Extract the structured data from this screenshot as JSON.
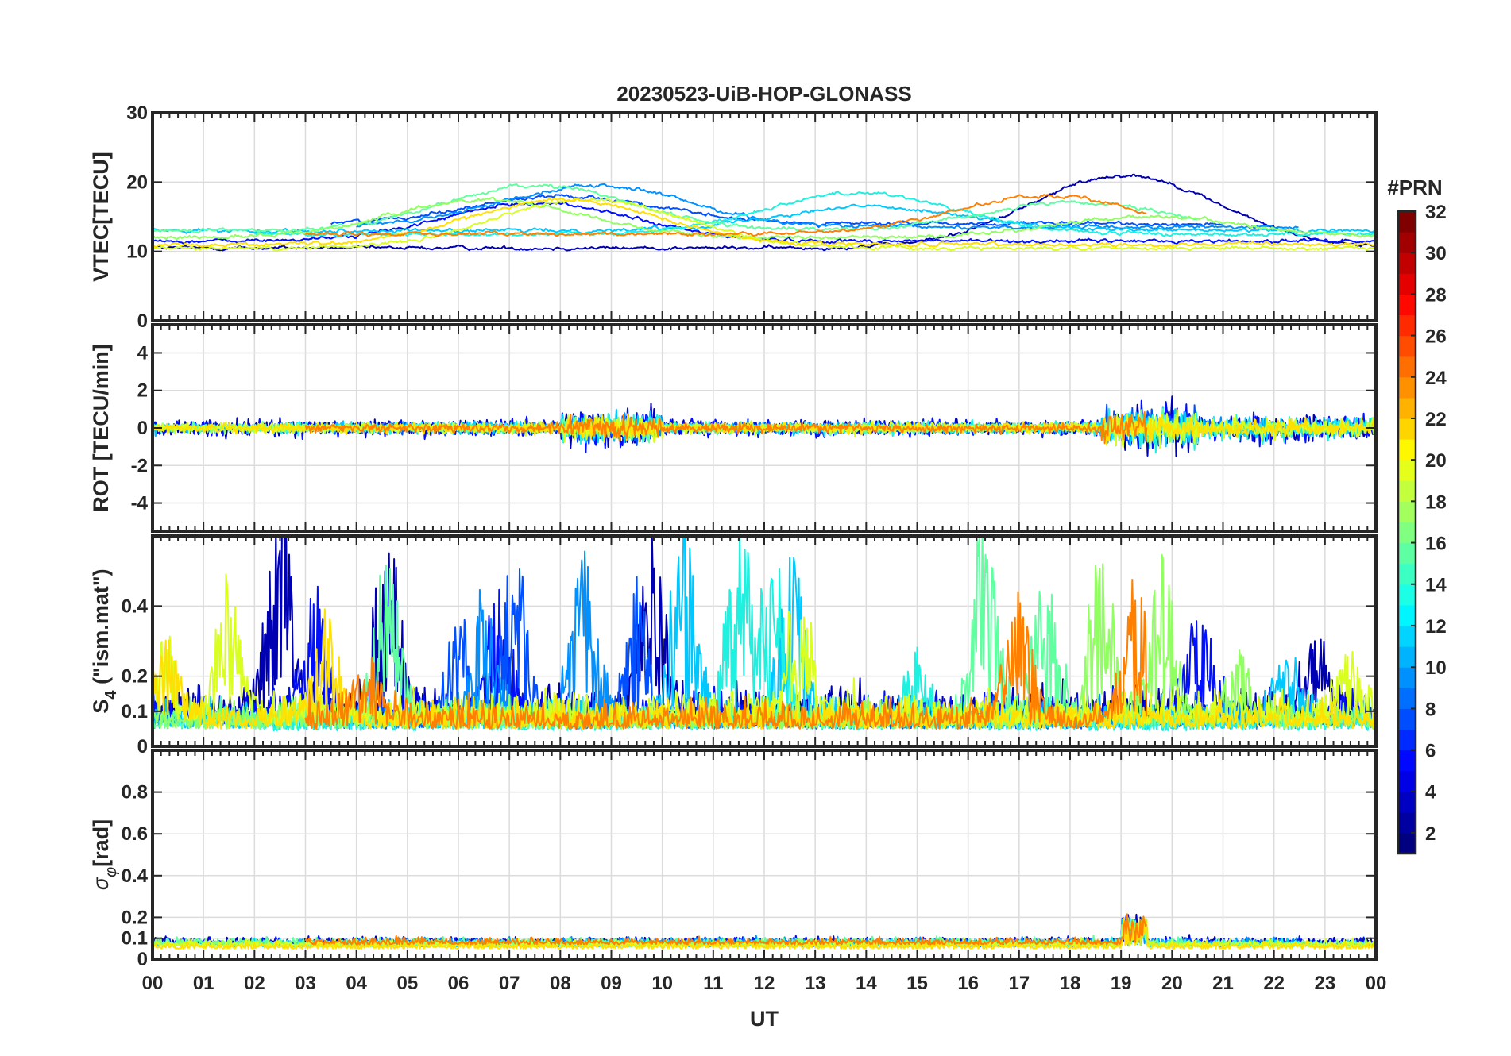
{
  "figure": {
    "title": "20230523-UiB-HOP-GLONASS",
    "xlabel": "UT",
    "colorbar_label": "#PRN"
  },
  "chart_data": [
    {
      "type": "line",
      "panel": "vtec",
      "ylabel": "VTEC[TECU]",
      "ylim": [
        0,
        30
      ],
      "yticks": [
        0,
        10,
        20,
        30
      ],
      "xlim": [
        0,
        24
      ],
      "grid": true
    },
    {
      "type": "line",
      "panel": "rot",
      "ylabel": "ROT [TECU/min]",
      "ylim": [
        -5.5,
        5.5
      ],
      "yticks": [
        -4,
        -2,
        0,
        2,
        4
      ],
      "xlim": [
        0,
        24
      ],
      "grid": true
    },
    {
      "type": "line",
      "panel": "s4",
      "ylabel_main": "S",
      "ylabel_sub": "4",
      "ylabel_rest": " (\"ism.mat\")",
      "ylim": [
        0,
        0.6
      ],
      "yticks": [
        0,
        0.1,
        0.2,
        0.4
      ],
      "xlim": [
        0,
        24
      ],
      "grid": true
    },
    {
      "type": "line",
      "panel": "sigma_phi",
      "ylabel_main": "σ",
      "ylabel_sub": "φ",
      "ylabel_rest": "[rad]",
      "ylim": [
        0,
        1
      ],
      "yticks": [
        0,
        0.1,
        0.2,
        0.4,
        0.6,
        0.8
      ],
      "xlim": [
        0,
        24
      ],
      "grid": true
    }
  ],
  "x_tick_labels": [
    "00",
    "01",
    "02",
    "03",
    "04",
    "05",
    "06",
    "07",
    "08",
    "09",
    "10",
    "11",
    "12",
    "13",
    "14",
    "15",
    "16",
    "17",
    "18",
    "19",
    "20",
    "21",
    "22",
    "23",
    "00"
  ],
  "colorbar": {
    "range": [
      1,
      32
    ],
    "tick_values": [
      2,
      4,
      6,
      8,
      10,
      12,
      14,
      16,
      18,
      20,
      22,
      24,
      26,
      28,
      30,
      32
    ],
    "colormap": "jet"
  },
  "prn_series": [
    {
      "prn": 2,
      "color": "#0000b3",
      "t0": 0.0,
      "t1": 24.0,
      "vtec_base": 10.5,
      "vtec_events": [
        [
          19.0,
          10.5
        ]
      ],
      "rot_amp": 0.9,
      "s4_base": 0.13,
      "s4_events": [
        [
          2.5,
          0.6
        ],
        [
          4.6,
          0.55
        ],
        [
          9.8,
          0.5
        ],
        [
          22.8,
          0.25
        ]
      ],
      "sig_base": 0.07
    },
    {
      "prn": 4,
      "color": "#0010ff",
      "t0": 0.0,
      "t1": 24.0,
      "vtec_base": 11.5,
      "vtec_events": [
        [
          7.5,
          5.5
        ]
      ],
      "rot_amp": 1.0,
      "s4_base": 0.12,
      "s4_events": [
        [
          3.2,
          0.35
        ],
        [
          6.8,
          0.42
        ],
        [
          20.5,
          0.3
        ]
      ],
      "sig_base": 0.07
    },
    {
      "prn": 6,
      "color": "#0050ff",
      "t0": 3.5,
      "t1": 21.0,
      "vtec_base": 14.0,
      "vtec_events": [
        [
          8.0,
          4.0
        ]
      ],
      "rot_amp": 0.7,
      "s4_base": 0.1,
      "s4_events": [
        [
          6.0,
          0.3
        ],
        [
          7.1,
          0.5
        ],
        [
          9.5,
          0.4
        ]
      ],
      "sig_base": 0.06
    },
    {
      "prn": 8,
      "color": "#0090ff",
      "t0": 4.0,
      "t1": 22.5,
      "vtec_base": 13.5,
      "vtec_events": [
        [
          8.6,
          6.0
        ]
      ],
      "rot_amp": 0.6,
      "s4_base": 0.1,
      "s4_events": [
        [
          8.5,
          0.55
        ],
        [
          6.5,
          0.35
        ]
      ],
      "sig_base": 0.07
    },
    {
      "prn": 10,
      "color": "#00c8ff",
      "t0": 0.0,
      "t1": 24.0,
      "vtec_base": 13.0,
      "vtec_events": [
        [
          14.0,
          3.5
        ]
      ],
      "rot_amp": 0.7,
      "s4_base": 0.1,
      "s4_events": [
        [
          10.4,
          0.6
        ],
        [
          12.5,
          0.55
        ],
        [
          22.3,
          0.2
        ]
      ],
      "sig_base": 0.06
    },
    {
      "prn": 12,
      "color": "#20f0e0",
      "t0": 2.0,
      "t1": 24.0,
      "vtec_base": 12.5,
      "vtec_events": [
        [
          13.8,
          6.0
        ]
      ],
      "rot_amp": 0.8,
      "s4_base": 0.09,
      "s4_events": [
        [
          11.5,
          0.55
        ],
        [
          12.2,
          0.5
        ],
        [
          15.0,
          0.2
        ]
      ],
      "sig_base": 0.06
    },
    {
      "prn": 14,
      "color": "#60ffa0",
      "t0": 0.0,
      "t1": 20.5,
      "vtec_base": 13.0,
      "vtec_events": [
        [
          7.5,
          6.5
        ],
        [
          18.0,
          4.0
        ]
      ],
      "rot_amp": 0.6,
      "s4_base": 0.1,
      "s4_events": [
        [
          4.6,
          0.45
        ],
        [
          16.3,
          0.6
        ],
        [
          17.5,
          0.45
        ]
      ],
      "sig_base": 0.07
    },
    {
      "prn": 16,
      "color": "#90ff60",
      "t0": 0.0,
      "t1": 24.0,
      "vtec_base": 12.0,
      "vtec_events": [
        [
          6.5,
          5.5
        ],
        [
          19.5,
          3.0
        ]
      ],
      "rot_amp": 0.5,
      "s4_base": 0.1,
      "s4_events": [
        [
          18.6,
          0.55
        ],
        [
          19.8,
          0.5
        ],
        [
          21.3,
          0.2
        ]
      ],
      "sig_base": 0.06
    },
    {
      "prn": 19,
      "color": "#d8ff20",
      "t0": 0.0,
      "t1": 24.0,
      "vtec_base": 10.5,
      "vtec_events": [
        [
          8.5,
          7.0
        ]
      ],
      "rot_amp": 0.7,
      "s4_base": 0.12,
      "s4_events": [
        [
          1.5,
          0.4
        ],
        [
          0.1,
          0.35
        ],
        [
          12.7,
          0.4
        ],
        [
          23.5,
          0.22
        ]
      ],
      "sig_base": 0.06
    },
    {
      "prn": 21,
      "color": "#ffe000",
      "t0": 0.0,
      "t1": 24.0,
      "vtec_base": 11.0,
      "vtec_events": [
        [
          8.0,
          6.5
        ]
      ],
      "rot_amp": 0.6,
      "s4_base": 0.1,
      "s4_events": [
        [
          0.3,
          0.25
        ],
        [
          3.4,
          0.3
        ]
      ],
      "sig_base": 0.05
    },
    {
      "prn": 23,
      "color": "#ff8000",
      "t0": 3.0,
      "t1": 19.5,
      "vtec_base": 12.5,
      "vtec_events": [
        [
          17.5,
          5.5
        ]
      ],
      "rot_amp": 0.6,
      "s4_base": 0.1,
      "s4_events": [
        [
          17.0,
          0.4
        ],
        [
          19.3,
          0.42
        ],
        [
          4.2,
          0.2
        ]
      ],
      "sig_base": 0.07
    }
  ]
}
